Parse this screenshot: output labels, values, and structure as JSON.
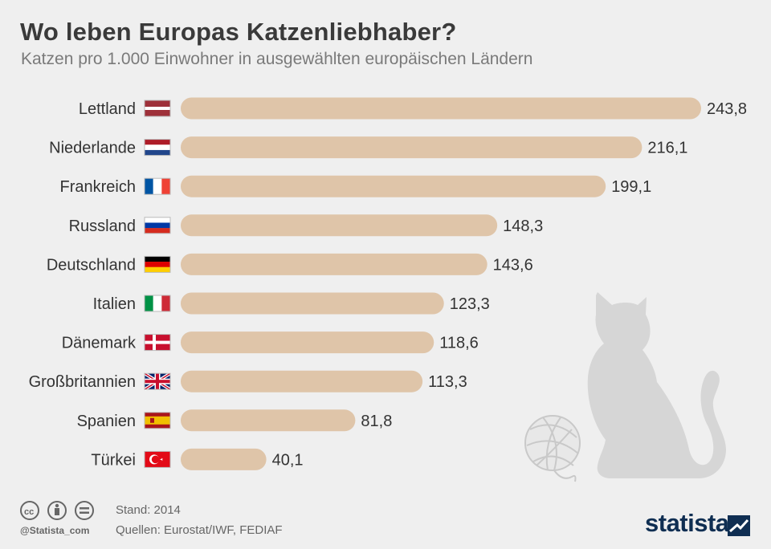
{
  "title": "Wo leben Europas Katzenliebhaber?",
  "subtitle": "Katzen pro 1.000 Einwohner in ausgewählten europäischen Ländern",
  "chart_data": {
    "type": "bar",
    "orientation": "horizontal",
    "categories": [
      "Lettland",
      "Niederlande",
      "Frankreich",
      "Russland",
      "Deutschland",
      "Italien",
      "Dänemark",
      "Großbritannien",
      "Spanien",
      "Türkei"
    ],
    "values": [
      243.8,
      216.1,
      199.1,
      148.3,
      143.6,
      123.3,
      118.6,
      113.3,
      81.8,
      40.1
    ],
    "value_labels": [
      "243,8",
      "216,1",
      "199,1",
      "148,3",
      "143,6",
      "123,3",
      "118,6",
      "113,3",
      "81,8",
      "40,1"
    ],
    "flags": [
      "latvia-flag-icon",
      "netherlands-flag-icon",
      "france-flag-icon",
      "russia-flag-icon",
      "germany-flag-icon",
      "italy-flag-icon",
      "denmark-flag-icon",
      "uk-flag-icon",
      "spain-flag-icon",
      "turkey-flag-icon"
    ],
    "title": "Wo leben Europas Katzenliebhaber?",
    "bar_color": "#dfc5a9",
    "grid": false,
    "legend": "none"
  },
  "footer": {
    "handle": "@Statista_com",
    "stand": "Stand: 2014",
    "sources": "Quellen: Eurostat/IWF, FEDIAF",
    "logo": "statista"
  },
  "colors": {
    "background": "#efefef",
    "bar": "#dfc5a9",
    "decoration": "#d6d6d6",
    "brand": "#0f2e52"
  }
}
